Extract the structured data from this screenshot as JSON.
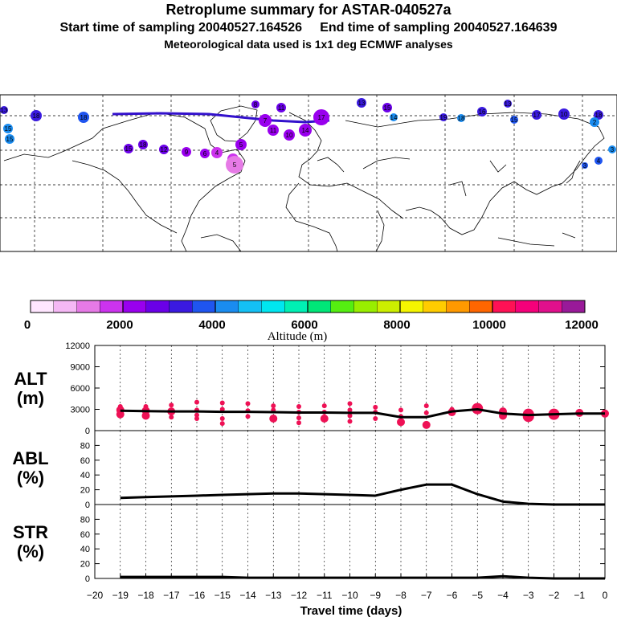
{
  "header": {
    "title": "Retroplume summary for ASTAR-040527a",
    "sampling_line": "Start time of sampling 20040527.164526     End time of sampling 20040527.164639",
    "met_line": "Meteorological data used is 1x1 deg ECMWF analyses"
  },
  "colors": {
    "ink": "#000000",
    "dot": "#ee1155",
    "track": "#3311cc"
  },
  "map": {
    "label_numbers": [
      "13",
      "18",
      "18",
      "15",
      "15",
      "15",
      "18",
      "12",
      "9",
      "6",
      "4",
      "1",
      "5",
      "8",
      "11",
      "7",
      "14",
      "10",
      "11",
      "17",
      "13",
      "15",
      "14",
      "19",
      "18",
      "16",
      "13",
      "15",
      "17",
      "10",
      "18",
      "2",
      "3",
      "3",
      "4",
      "5"
    ]
  },
  "colorbar": {
    "tick_labels": [
      "0",
      "2000",
      "4000",
      "6000",
      "8000",
      "10000",
      "12000"
    ],
    "label": "Altitude (m)",
    "colors": [
      "#ffe6ff",
      "#f5b8f5",
      "#e67ae6",
      "#cc33ee",
      "#9900ee",
      "#6a00e8",
      "#3a1ae0",
      "#1f55f0",
      "#1a8cf0",
      "#14c0f5",
      "#00e6f0",
      "#00f0b4",
      "#00e678",
      "#55ee11",
      "#99ee00",
      "#ccee00",
      "#f5f500",
      "#ffcc00",
      "#ff9900",
      "#ff6600",
      "#ff1155",
      "#f5007a",
      "#e0108c",
      "#991a99"
    ]
  },
  "chart_data": [
    {
      "type": "line",
      "name": "ALT",
      "ylabel": "ALT\n(m)",
      "ylim": [
        0,
        12000
      ],
      "yticks": [
        0,
        3000,
        6000,
        9000,
        12000
      ],
      "x": [
        -19,
        -18,
        -17,
        -16,
        -15,
        -14,
        -13,
        -12,
        -11,
        -10,
        -9,
        -8,
        -7,
        -6,
        -5,
        -4,
        -3,
        -2,
        -1,
        0
      ],
      "values": [
        2800,
        2750,
        2700,
        2700,
        2650,
        2650,
        2600,
        2550,
        2550,
        2500,
        2500,
        1900,
        1900,
        2700,
        3000,
        2400,
        2200,
        2300,
        2400,
        2400
      ],
      "scatter": [
        {
          "x": -19,
          "y": 2900,
          "s": 2
        },
        {
          "x": -19,
          "y": 2300,
          "s": 2
        },
        {
          "x": -19,
          "y": 3400,
          "s": 1
        },
        {
          "x": -18,
          "y": 3400,
          "s": 1
        },
        {
          "x": -18,
          "y": 2800,
          "s": 2
        },
        {
          "x": -18,
          "y": 2100,
          "s": 2
        },
        {
          "x": -17,
          "y": 3600,
          "s": 1
        },
        {
          "x": -17,
          "y": 2700,
          "s": 2
        },
        {
          "x": -17,
          "y": 1900,
          "s": 1
        },
        {
          "x": -16,
          "y": 4000,
          "s": 1
        },
        {
          "x": -16,
          "y": 2900,
          "s": 1
        },
        {
          "x": -16,
          "y": 2200,
          "s": 1
        },
        {
          "x": -16,
          "y": 1700,
          "s": 1
        },
        {
          "x": -15,
          "y": 3900,
          "s": 1
        },
        {
          "x": -15,
          "y": 3000,
          "s": 1
        },
        {
          "x": -15,
          "y": 1700,
          "s": 1
        },
        {
          "x": -15,
          "y": 1000,
          "s": 1
        },
        {
          "x": -14,
          "y": 3800,
          "s": 1
        },
        {
          "x": -14,
          "y": 2800,
          "s": 1
        },
        {
          "x": -14,
          "y": 2000,
          "s": 1
        },
        {
          "x": -13,
          "y": 3500,
          "s": 1
        },
        {
          "x": -13,
          "y": 2900,
          "s": 1
        },
        {
          "x": -13,
          "y": 1700,
          "s": 2
        },
        {
          "x": -12,
          "y": 3400,
          "s": 1
        },
        {
          "x": -12,
          "y": 2600,
          "s": 1
        },
        {
          "x": -12,
          "y": 1800,
          "s": 1
        },
        {
          "x": -12,
          "y": 1100,
          "s": 1
        },
        {
          "x": -11,
          "y": 3500,
          "s": 1
        },
        {
          "x": -11,
          "y": 2600,
          "s": 1
        },
        {
          "x": -11,
          "y": 1700,
          "s": 2
        },
        {
          "x": -10,
          "y": 3800,
          "s": 1
        },
        {
          "x": -10,
          "y": 2900,
          "s": 1
        },
        {
          "x": -10,
          "y": 2100,
          "s": 1
        },
        {
          "x": -10,
          "y": 1300,
          "s": 1
        },
        {
          "x": -9,
          "y": 3300,
          "s": 1
        },
        {
          "x": -9,
          "y": 2600,
          "s": 1
        },
        {
          "x": -9,
          "y": 1700,
          "s": 1
        },
        {
          "x": -8,
          "y": 2900,
          "s": 1
        },
        {
          "x": -8,
          "y": 2000,
          "s": 1
        },
        {
          "x": -8,
          "y": 1200,
          "s": 2
        },
        {
          "x": -7,
          "y": 3500,
          "s": 1
        },
        {
          "x": -7,
          "y": 2500,
          "s": 1
        },
        {
          "x": -7,
          "y": 800,
          "s": 2
        },
        {
          "x": -6,
          "y": 3000,
          "s": 1
        },
        {
          "x": -6,
          "y": 2600,
          "s": 2
        },
        {
          "x": -5,
          "y": 3100,
          "s": 3
        },
        {
          "x": -4,
          "y": 2700,
          "s": 2
        },
        {
          "x": -4,
          "y": 2100,
          "s": 2
        },
        {
          "x": -3,
          "y": 2300,
          "s": 3
        },
        {
          "x": -3,
          "y": 2000,
          "s": 3
        },
        {
          "x": -2,
          "y": 2300,
          "s": 3
        },
        {
          "x": -1,
          "y": 2500,
          "s": 2
        },
        {
          "x": 0,
          "y": 2400,
          "s": 2
        }
      ]
    },
    {
      "type": "line",
      "name": "ABL",
      "ylabel": "ABL\n(%)",
      "ylim": [
        0,
        100
      ],
      "yticks": [
        0,
        20,
        40,
        60,
        80,
        100
      ],
      "x": [
        -19,
        -18,
        -17,
        -16,
        -15,
        -14,
        -13,
        -12,
        -11,
        -10,
        -9,
        -8,
        -7,
        -6,
        -5,
        -4,
        -3,
        -2,
        -1,
        0
      ],
      "values": [
        9,
        10,
        11,
        12,
        13,
        14,
        15,
        15,
        14,
        13,
        12,
        20,
        27,
        27,
        14,
        4,
        1,
        0,
        0,
        0
      ]
    },
    {
      "type": "line",
      "name": "STR",
      "ylabel": "STR\n(%)",
      "ylim": [
        0,
        100
      ],
      "yticks": [
        0,
        20,
        40,
        60,
        80,
        100
      ],
      "x": [
        -19,
        -18,
        -17,
        -16,
        -15,
        -14,
        -13,
        -12,
        -11,
        -10,
        -9,
        -8,
        -7,
        -6,
        -5,
        -4,
        -3,
        -2,
        -1,
        0
      ],
      "values": [
        2,
        2,
        2,
        2,
        2,
        1,
        1,
        1,
        1,
        1,
        1,
        1,
        1,
        1,
        1,
        3,
        1,
        0,
        0,
        0
      ]
    }
  ],
  "xaxis": {
    "tick_labels": [
      "−20",
      "−19",
      "−18",
      "−17",
      "−16",
      "−15",
      "−14",
      "−13",
      "−12",
      "−11",
      "−10",
      "−9",
      "−8",
      "−7",
      "−6",
      "−5",
      "−4",
      "−3",
      "−2",
      "−1",
      "0"
    ],
    "label": "Travel time (days)"
  }
}
